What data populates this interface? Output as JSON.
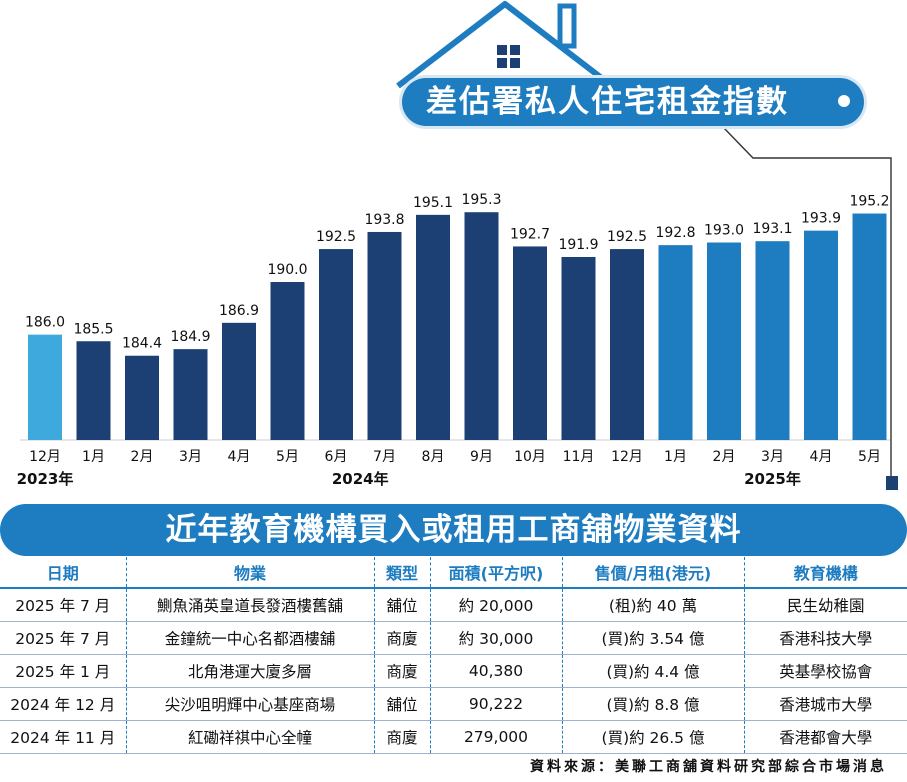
{
  "title": "差估署私人住宅租金指數",
  "chart_data": {
    "type": "bar",
    "title": "差估署私人住宅租金指數",
    "categories": [
      "12月",
      "1月",
      "2月",
      "3月",
      "4月",
      "5月",
      "6月",
      "7月",
      "8月",
      "9月",
      "10月",
      "11月",
      "12月",
      "1月",
      "2月",
      "3月",
      "4月",
      "5月"
    ],
    "values": [
      186.0,
      185.5,
      184.4,
      184.9,
      186.9,
      190.0,
      192.5,
      193.8,
      195.1,
      195.3,
      192.7,
      191.9,
      192.5,
      192.8,
      193.0,
      193.1,
      193.9,
      195.2
    ],
    "value_labels": [
      "186.0",
      "185.5",
      "184.4",
      "184.9",
      "186.9",
      "190.0",
      "192.5",
      "193.8",
      "195.1",
      "195.3",
      "192.7",
      "191.9",
      "192.5",
      "192.8",
      "193.0",
      "193.1",
      "193.9",
      "195.2"
    ],
    "year_groups": [
      {
        "label": "2023年",
        "start": 0,
        "end": 0,
        "color": "#3ea9dc"
      },
      {
        "label": "2024年",
        "start": 1,
        "end": 12,
        "color": "#1c3f74"
      },
      {
        "label": "2025年",
        "start": 13,
        "end": 17,
        "color": "#1e7cc1"
      }
    ],
    "ylim": [
      0,
      196
    ],
    "grid": false,
    "legend": "none"
  },
  "table": {
    "title": "近年教育機構買入或租用工商舖物業資料",
    "headers": [
      "日期",
      "物業",
      "類型",
      "面積(平方呎)",
      "售價/月租(港元)",
      "教育機構"
    ],
    "rows": [
      [
        "2025 年 7 月",
        "鰂魚涌英皇道長發酒樓舊舖",
        "舖位",
        "約 20,000",
        "(租)約 40 萬",
        "民生幼稚園"
      ],
      [
        "2025 年 7 月",
        "金鐘統一中心名都酒樓舖",
        "商廈",
        "約 30,000",
        "(買)約 3.54 億",
        "香港科技大學"
      ],
      [
        "2025 年 1 月",
        "北角港運大廈多層",
        "商廈",
        "40,380",
        "(買)約  4.4 億",
        "英基學校協會"
      ],
      [
        "2024 年 12 月",
        "尖沙咀明輝中心基座商場",
        "舖位",
        "90,222",
        "(買)約   8.8 億",
        "香港城市大學"
      ],
      [
        "2024 年 11 月",
        "紅磡祥祺中心全幢",
        "商廈",
        "279,000",
        "(買)約 26.5 億",
        "香港都會大學"
      ]
    ]
  },
  "source": "資料來源：美聯工商舖資料研究部綜合市場消息"
}
